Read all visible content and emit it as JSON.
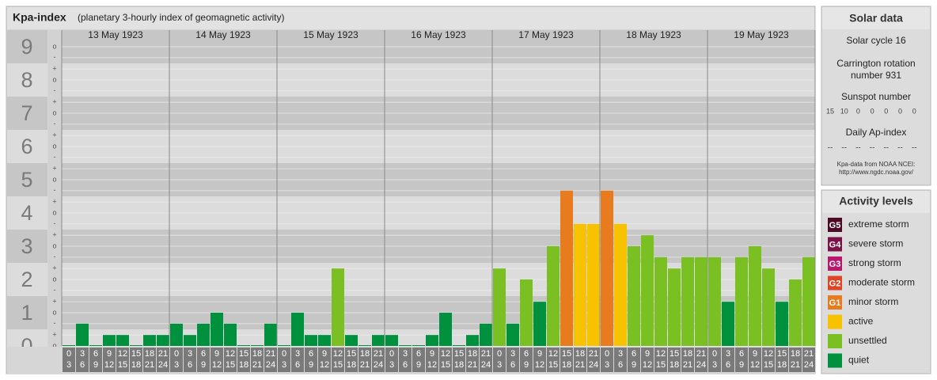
{
  "chart_data": {
    "type": "bar",
    "title": "Kpa-index",
    "subtitle": "(planetary 3-hourly index of geomagnetic activity)",
    "ylim": [
      0,
      9.5
    ],
    "yticks": [
      0,
      1,
      2,
      3,
      4,
      5,
      6,
      7,
      8,
      9
    ],
    "yminorticks": [
      {
        "value": 0,
        "label": "o"
      },
      {
        "value": 0.33,
        "label": "+"
      },
      {
        "value": 0.67,
        "label": "-"
      },
      {
        "value": 1,
        "label": "o"
      },
      {
        "value": 1.33,
        "label": "+"
      },
      {
        "value": 1.67,
        "label": "-"
      },
      {
        "value": 2,
        "label": "o"
      },
      {
        "value": 2.33,
        "label": "+"
      },
      {
        "value": 2.67,
        "label": "-"
      },
      {
        "value": 3,
        "label": "o"
      },
      {
        "value": 3.33,
        "label": "+"
      },
      {
        "value": 3.67,
        "label": "-"
      },
      {
        "value": 4,
        "label": "o"
      },
      {
        "value": 4.33,
        "label": "+"
      },
      {
        "value": 4.67,
        "label": "-"
      },
      {
        "value": 5,
        "label": "o"
      },
      {
        "value": 5.33,
        "label": "+"
      },
      {
        "value": 5.67,
        "label": "-"
      },
      {
        "value": 6,
        "label": "o"
      },
      {
        "value": 6.33,
        "label": "+"
      },
      {
        "value": 6.67,
        "label": "-"
      },
      {
        "value": 7,
        "label": "o"
      },
      {
        "value": 7.33,
        "label": "+"
      },
      {
        "value": 7.67,
        "label": "-"
      },
      {
        "value": 8,
        "label": "o"
      },
      {
        "value": 8.33,
        "label": "+"
      },
      {
        "value": 8.67,
        "label": "-"
      },
      {
        "value": 9,
        "label": "o"
      }
    ],
    "hours": [
      [
        "0",
        "3"
      ],
      [
        "3",
        "6"
      ],
      [
        "6",
        "9"
      ],
      [
        "9",
        "12"
      ],
      [
        "12",
        "15"
      ],
      [
        "15",
        "18"
      ],
      [
        "18",
        "21"
      ],
      [
        "21",
        "24"
      ]
    ],
    "days": [
      {
        "date": "13 May 1923",
        "values": [
          0,
          0.67,
          0,
          0.33,
          0.33,
          0,
          0.33,
          0.33
        ],
        "colors": [
          "#00913f",
          "#00913f",
          "#00913f",
          "#00913f",
          "#00913f",
          "#00913f",
          "#00913f",
          "#00913f"
        ],
        "sunspot": 15,
        "ap": "--"
      },
      {
        "date": "14 May 1923",
        "values": [
          0.67,
          0.33,
          0.67,
          1,
          0.67,
          0,
          0,
          0.67
        ],
        "colors": [
          "#00913f",
          "#00913f",
          "#00913f",
          "#00913f",
          "#00913f",
          "#00913f",
          "#00913f",
          "#00913f"
        ],
        "sunspot": 10,
        "ap": "--"
      },
      {
        "date": "15 May 1923",
        "values": [
          0,
          1,
          0.33,
          0.33,
          2.33,
          0.33,
          0,
          0.33
        ],
        "colors": [
          "#00913f",
          "#00913f",
          "#00913f",
          "#00913f",
          "#7ac023",
          "#00913f",
          "#00913f",
          "#00913f"
        ],
        "sunspot": 0,
        "ap": "--"
      },
      {
        "date": "16 May 1923",
        "values": [
          0.33,
          0,
          0,
          0.33,
          1,
          0,
          0.33,
          0.67
        ],
        "colors": [
          "#00913f",
          "#00913f",
          "#00913f",
          "#00913f",
          "#00913f",
          "#00913f",
          "#00913f",
          "#00913f"
        ],
        "sunspot": 0,
        "ap": "--"
      },
      {
        "date": "17 May 1923",
        "values": [
          2.33,
          0.67,
          2,
          1.33,
          3,
          4.67,
          3.67,
          3.67
        ],
        "colors": [
          "#7ac023",
          "#00913f",
          "#7ac023",
          "#00913f",
          "#7ac023",
          "#e87b1e",
          "#f7c200",
          "#f7c200"
        ],
        "sunspot": 0,
        "ap": "--"
      },
      {
        "date": "18 May 1923",
        "values": [
          4.67,
          3.67,
          3,
          3.33,
          2.67,
          2.33,
          2.67,
          2.67
        ],
        "colors": [
          "#e87b1e",
          "#f7c200",
          "#7ac023",
          "#7ac023",
          "#7ac023",
          "#7ac023",
          "#7ac023",
          "#7ac023"
        ],
        "sunspot": 0,
        "ap": "--"
      },
      {
        "date": "19 May 1923",
        "values": [
          2.67,
          1.33,
          2.67,
          3,
          2.33,
          1.33,
          2,
          2.67
        ],
        "colors": [
          "#7ac023",
          "#00913f",
          "#7ac023",
          "#7ac023",
          "#7ac023",
          "#00913f",
          "#7ac023",
          "#7ac023"
        ],
        "sunspot": 0,
        "ap": "--"
      }
    ],
    "solar": {
      "title": "Solar data",
      "cycle": "Solar cycle 16",
      "carrington": [
        "Carrington rotation",
        "number 931"
      ],
      "sunspot_title": "Sunspot number",
      "ap_title": "Daily Ap-index",
      "source": [
        "Kpa-data from NOAA NCEI:",
        "http://www.ngdc.noaa.gov/"
      ]
    },
    "legend": {
      "title": "Activity levels",
      "items": [
        {
          "badge": "G5",
          "name": "extreme storm",
          "color": "#4d0a24"
        },
        {
          "badge": "G4",
          "name": "severe storm",
          "color": "#7b1247"
        },
        {
          "badge": "G3",
          "name": "strong storm",
          "color": "#b8176b"
        },
        {
          "badge": "G2",
          "name": "moderate storm",
          "color": "#de4527"
        },
        {
          "badge": "G1",
          "name": "minor storm",
          "color": "#e87b1e"
        },
        {
          "name": "active",
          "color": "#f7c200"
        },
        {
          "name": "unsettled",
          "color": "#7ac023"
        },
        {
          "name": "quiet",
          "color": "#00913f"
        }
      ]
    }
  }
}
